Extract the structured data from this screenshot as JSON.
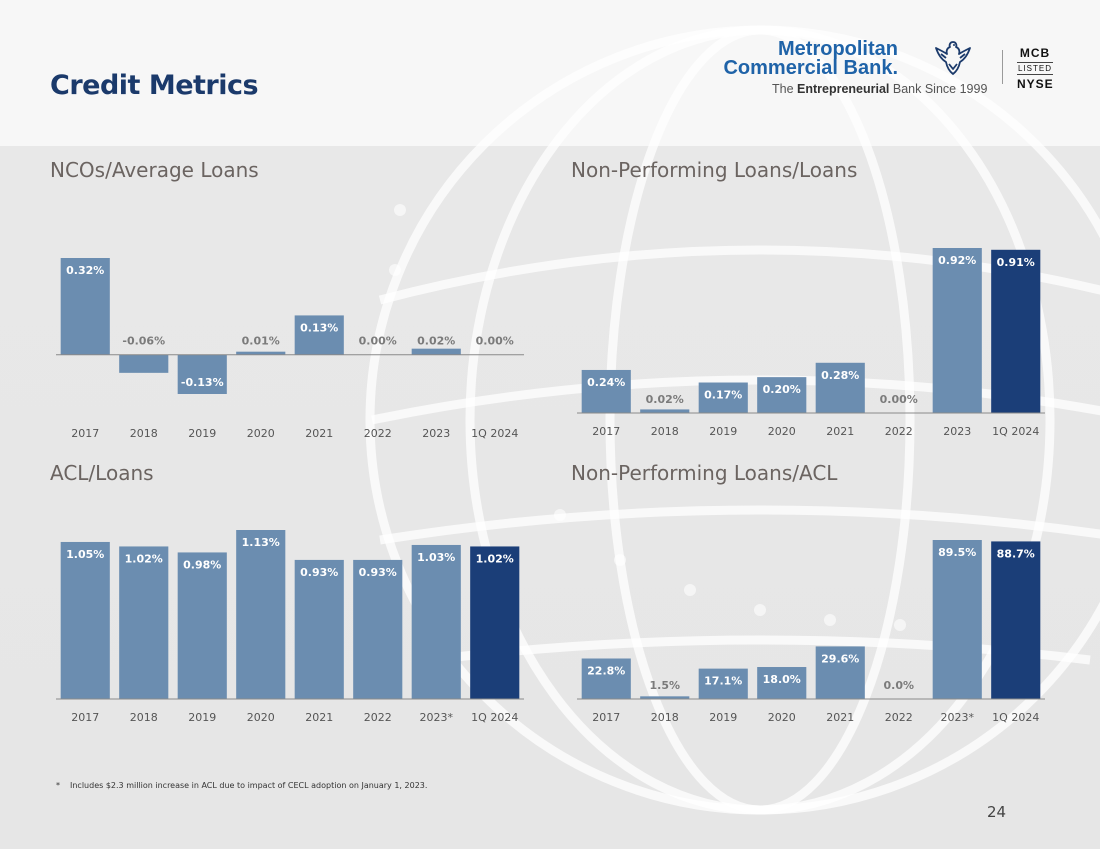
{
  "page": {
    "title": "Credit Metrics",
    "page_number": "24",
    "footnote_marker": "*",
    "footnote": "Includes $2.3 million increase in ACL due to impact of CECL adoption on January 1, 2023."
  },
  "logo": {
    "line1": "Metropolitan",
    "line2": "Commercial Bank.",
    "tagline_pre": "The ",
    "tagline_bold": "Entrepreneurial",
    "tagline_post": " Bank Since 1999",
    "ticker": "MCB",
    "listed": "LISTED",
    "exchange": "NYSE",
    "icon": "eagle-icon"
  },
  "colors": {
    "bar": "#6b8db0",
    "bar_highlight": "#1b3e78",
    "title_blue": "#1b3a6b",
    "label_on_bar": "#ffffff",
    "label_off_bar": "#7b7b7b"
  },
  "chart_data": [
    {
      "type": "bar",
      "title": "NCOs/Average Loans",
      "categories": [
        "2017",
        "2018",
        "2019",
        "2020",
        "2021",
        "2022",
        "2023",
        "1Q 2024"
      ],
      "values": [
        0.32,
        -0.06,
        -0.13,
        0.01,
        0.13,
        0.0,
        0.02,
        0.0
      ],
      "labels": [
        "0.32%",
        "-0.06%",
        "-0.13%",
        "0.01%",
        "0.13%",
        "0.00%",
        "0.02%",
        "0.00%"
      ],
      "highlight_last": false,
      "ylim": [
        -0.13,
        0.32
      ]
    },
    {
      "type": "bar",
      "title": "Non-Performing Loans/Loans",
      "categories": [
        "2017",
        "2018",
        "2019",
        "2020",
        "2021",
        "2022",
        "2023",
        "1Q 2024"
      ],
      "values": [
        0.24,
        0.02,
        0.17,
        0.2,
        0.28,
        0.0,
        0.92,
        0.91
      ],
      "labels": [
        "0.24%",
        "0.02%",
        "0.17%",
        "0.20%",
        "0.28%",
        "0.00%",
        "0.92%",
        "0.91%"
      ],
      "highlight_last": true,
      "ylim": [
        0,
        0.92
      ]
    },
    {
      "type": "bar",
      "title": "ACL/Loans",
      "categories": [
        "2017",
        "2018",
        "2019",
        "2020",
        "2021",
        "2022",
        "2023*",
        "1Q 2024"
      ],
      "values": [
        1.05,
        1.02,
        0.98,
        1.13,
        0.93,
        0.93,
        1.03,
        1.02
      ],
      "labels": [
        "1.05%",
        "1.02%",
        "0.98%",
        "1.13%",
        "0.93%",
        "0.93%",
        "1.03%",
        "1.02%"
      ],
      "highlight_last": true,
      "ylim": [
        0,
        1.13
      ]
    },
    {
      "type": "bar",
      "title": "Non-Performing Loans/ACL",
      "categories": [
        "2017",
        "2018",
        "2019",
        "2020",
        "2021",
        "2022",
        "2023*",
        "1Q 2024"
      ],
      "values": [
        22.8,
        1.5,
        17.1,
        18.0,
        29.6,
        0.0,
        89.5,
        88.7
      ],
      "labels": [
        "22.8%",
        "1.5%",
        "17.1%",
        "18.0%",
        "29.6%",
        "0.0%",
        "89.5%",
        "88.7%"
      ],
      "highlight_last": true,
      "ylim": [
        0,
        89.5
      ]
    }
  ]
}
